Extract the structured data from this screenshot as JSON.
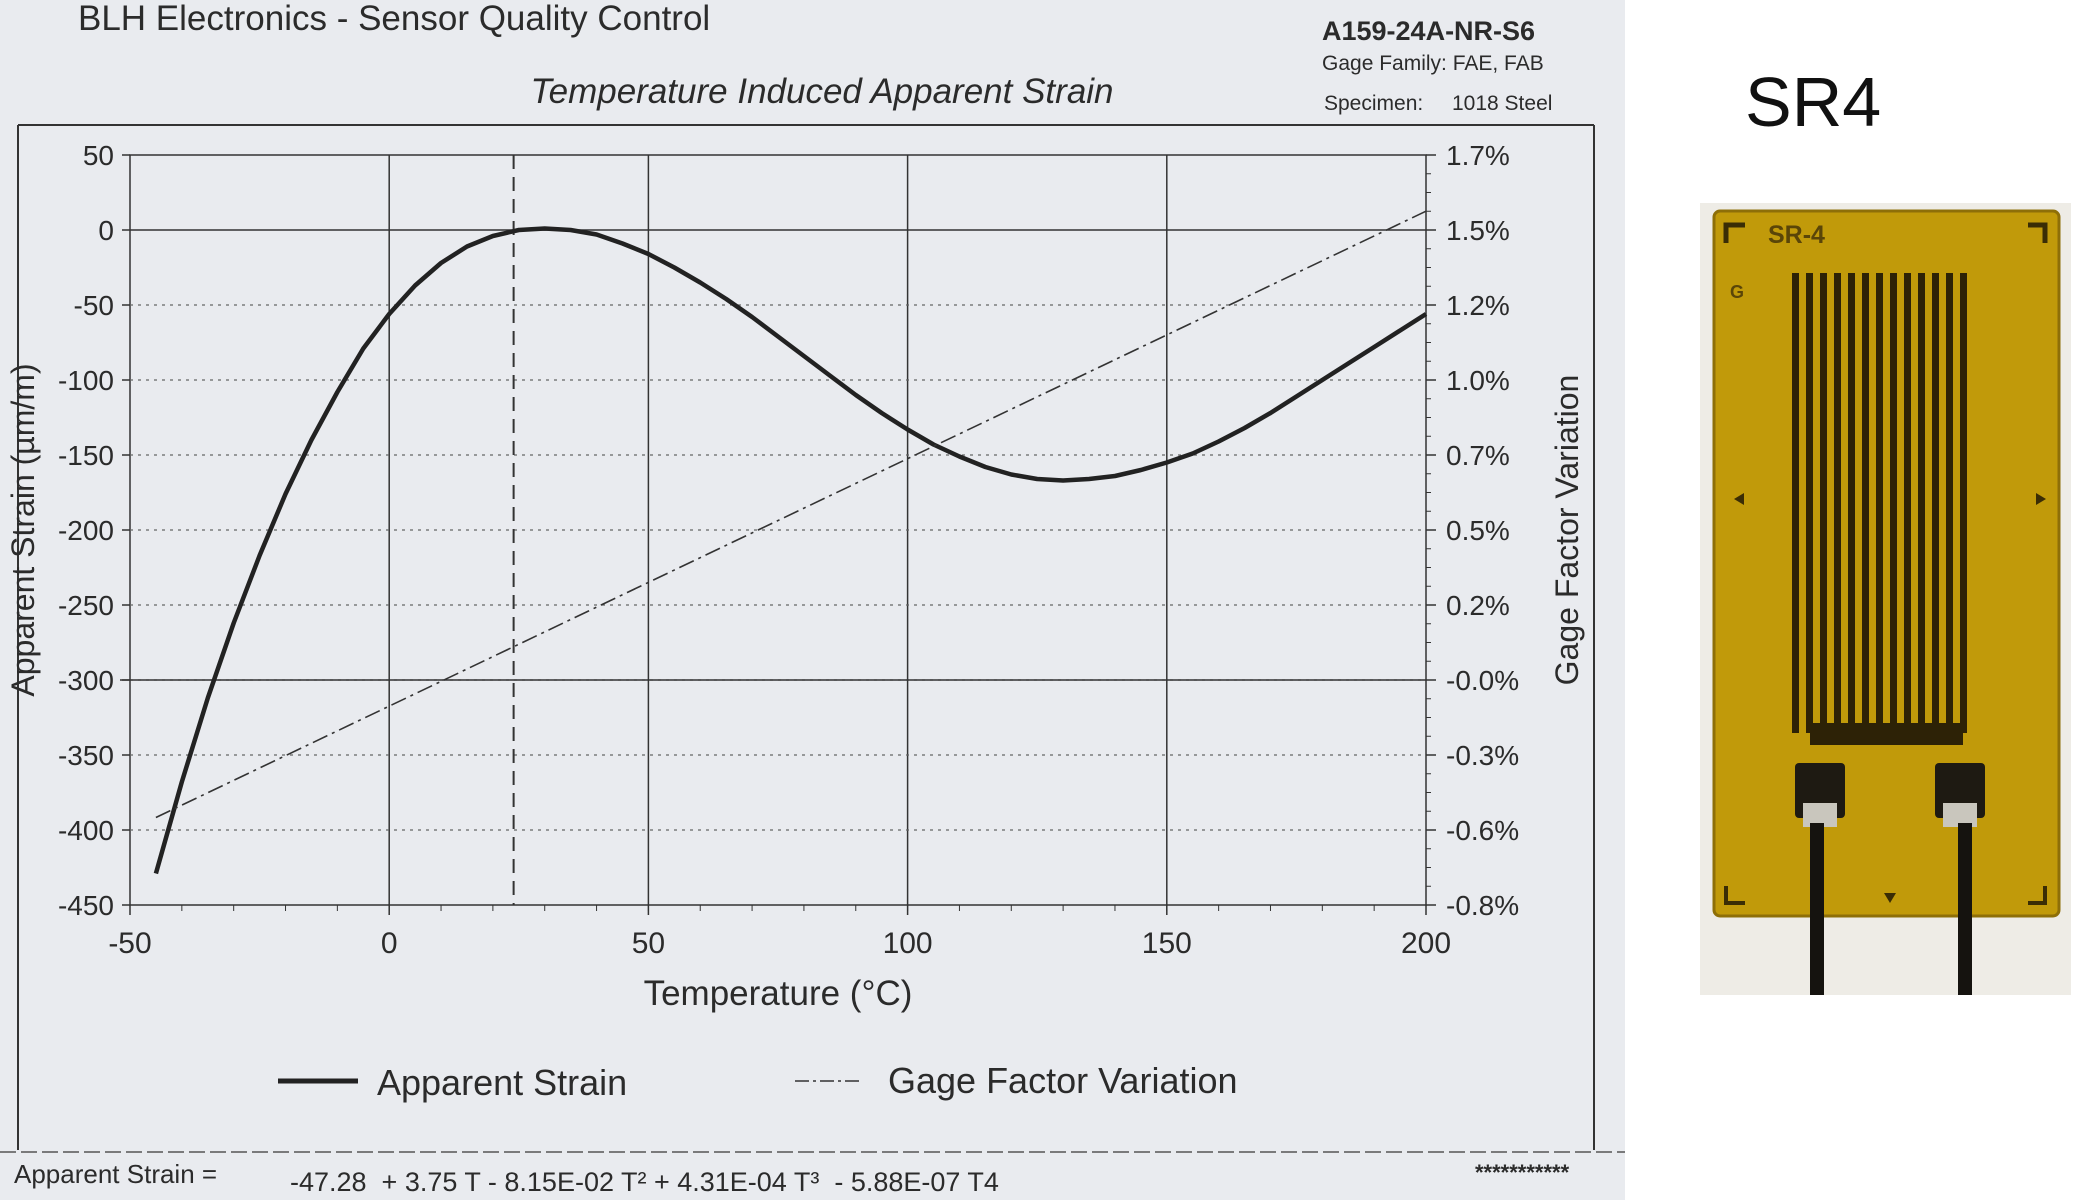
{
  "sheet": {
    "company_title": "BLH Electronics - Sensor Quality Control",
    "part_number": "A159-24A-NR-S6",
    "gage_family": "Gage Family: FAE, FAB",
    "specimen_label": "Specimen:",
    "specimen_value": "1018 Steel",
    "formula_label": "Apparent Strain =",
    "formula": "-47.28  + 3.75 T - 8.15E-02 T² + 4.31E-04 T³  - 5.88E-07 T4",
    "stars": "***********"
  },
  "chart_data": {
    "type": "line",
    "title": "Temperature Induced Apparent Strain",
    "xlabel": "Temperature (°C)",
    "ylabel": "Apparent Strain (µm/m)",
    "y2label": "Gage Factor Variation",
    "xlim": [
      -50,
      200
    ],
    "ylim": [
      -450,
      50
    ],
    "x_ticks": [
      "-50",
      "0",
      "50",
      "100",
      "150",
      "200"
    ],
    "y_ticks": [
      "50",
      "0",
      "-50",
      "-100",
      "-150",
      "-200",
      "-250",
      "-300",
      "-350",
      "-400",
      "-450"
    ],
    "y2_ticks": [
      "1.7%",
      "1.5%",
      "1.2%",
      "1.0%",
      "0.7%",
      "0.5%",
      "0.2%",
      "-0.0%",
      "-0.3%",
      "-0.6%",
      "-0.8%"
    ],
    "reference_temperature": 24,
    "grid": true,
    "legend_position": "bottom",
    "series": [
      {
        "name": "Apparent Strain",
        "style": "solid",
        "axis": "left",
        "x": [
          -45,
          -40,
          -35,
          -30,
          -25,
          -20,
          -15,
          -10,
          -5,
          0,
          5,
          10,
          15,
          20,
          25,
          30,
          35,
          40,
          45,
          50,
          55,
          60,
          65,
          70,
          75,
          80,
          85,
          90,
          95,
          100,
          105,
          110,
          115,
          120,
          125,
          130,
          135,
          140,
          145,
          150,
          155,
          160,
          165,
          170,
          175,
          180,
          185,
          190,
          195,
          200
        ],
        "y": [
          -429,
          -368,
          -312,
          -262,
          -217,
          -176,
          -140,
          -108,
          -79,
          -56,
          -37,
          -22,
          -11,
          -4,
          0,
          1,
          0,
          -3,
          -9,
          -16,
          -25,
          -35,
          -46,
          -58,
          -71,
          -84,
          -97,
          -110,
          -122,
          -133,
          -143,
          -151,
          -158,
          -163,
          -166,
          -167,
          -166,
          -164,
          -160,
          -155,
          -149,
          -141,
          -132,
          -122,
          -111,
          -100,
          -89,
          -78,
          -67,
          -56
        ]
      },
      {
        "name": "Gage Factor Variation",
        "style": "dash-dot",
        "axis": "right",
        "x": [
          -45,
          200
        ],
        "y": [
          -0.55,
          1.55
        ]
      }
    ]
  },
  "side_panel": {
    "label": "SR4",
    "gauge_marking": "SR-4",
    "gauge_letter": "G"
  }
}
